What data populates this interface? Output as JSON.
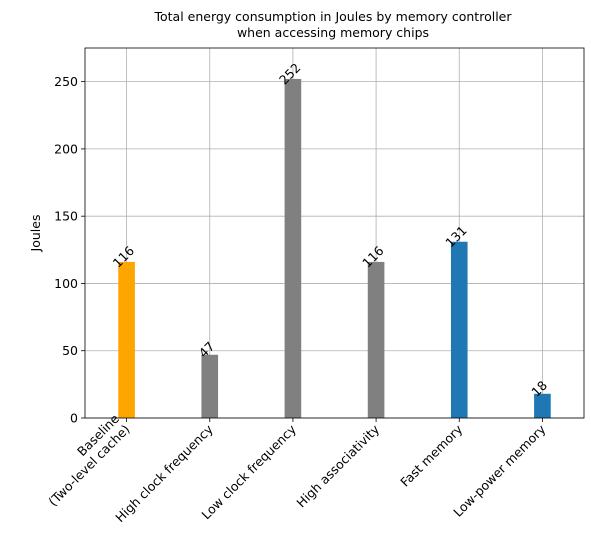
{
  "chart_data": {
    "type": "bar",
    "title_line1": "Total energy consumption in Joules by memory controller",
    "title_line2": "when accessing memory chips",
    "xlabel": "",
    "ylabel": "Joules",
    "ylim": [
      0,
      275
    ],
    "yticks": [
      0,
      50,
      100,
      150,
      200,
      250
    ],
    "grid": true,
    "categories": [
      [
        "Baseline",
        "(Two-level cache)"
      ],
      [
        "High clock frequency"
      ],
      [
        "Low clock frequency"
      ],
      [
        "High associativity"
      ],
      [
        "Fast memory"
      ],
      [
        "Low-power memory"
      ]
    ],
    "values": [
      116,
      47,
      252,
      116,
      131,
      18
    ],
    "colors": [
      "#ffa500",
      "#808080",
      "#808080",
      "#808080",
      "#1f77b4",
      "#1f77b4"
    ]
  }
}
